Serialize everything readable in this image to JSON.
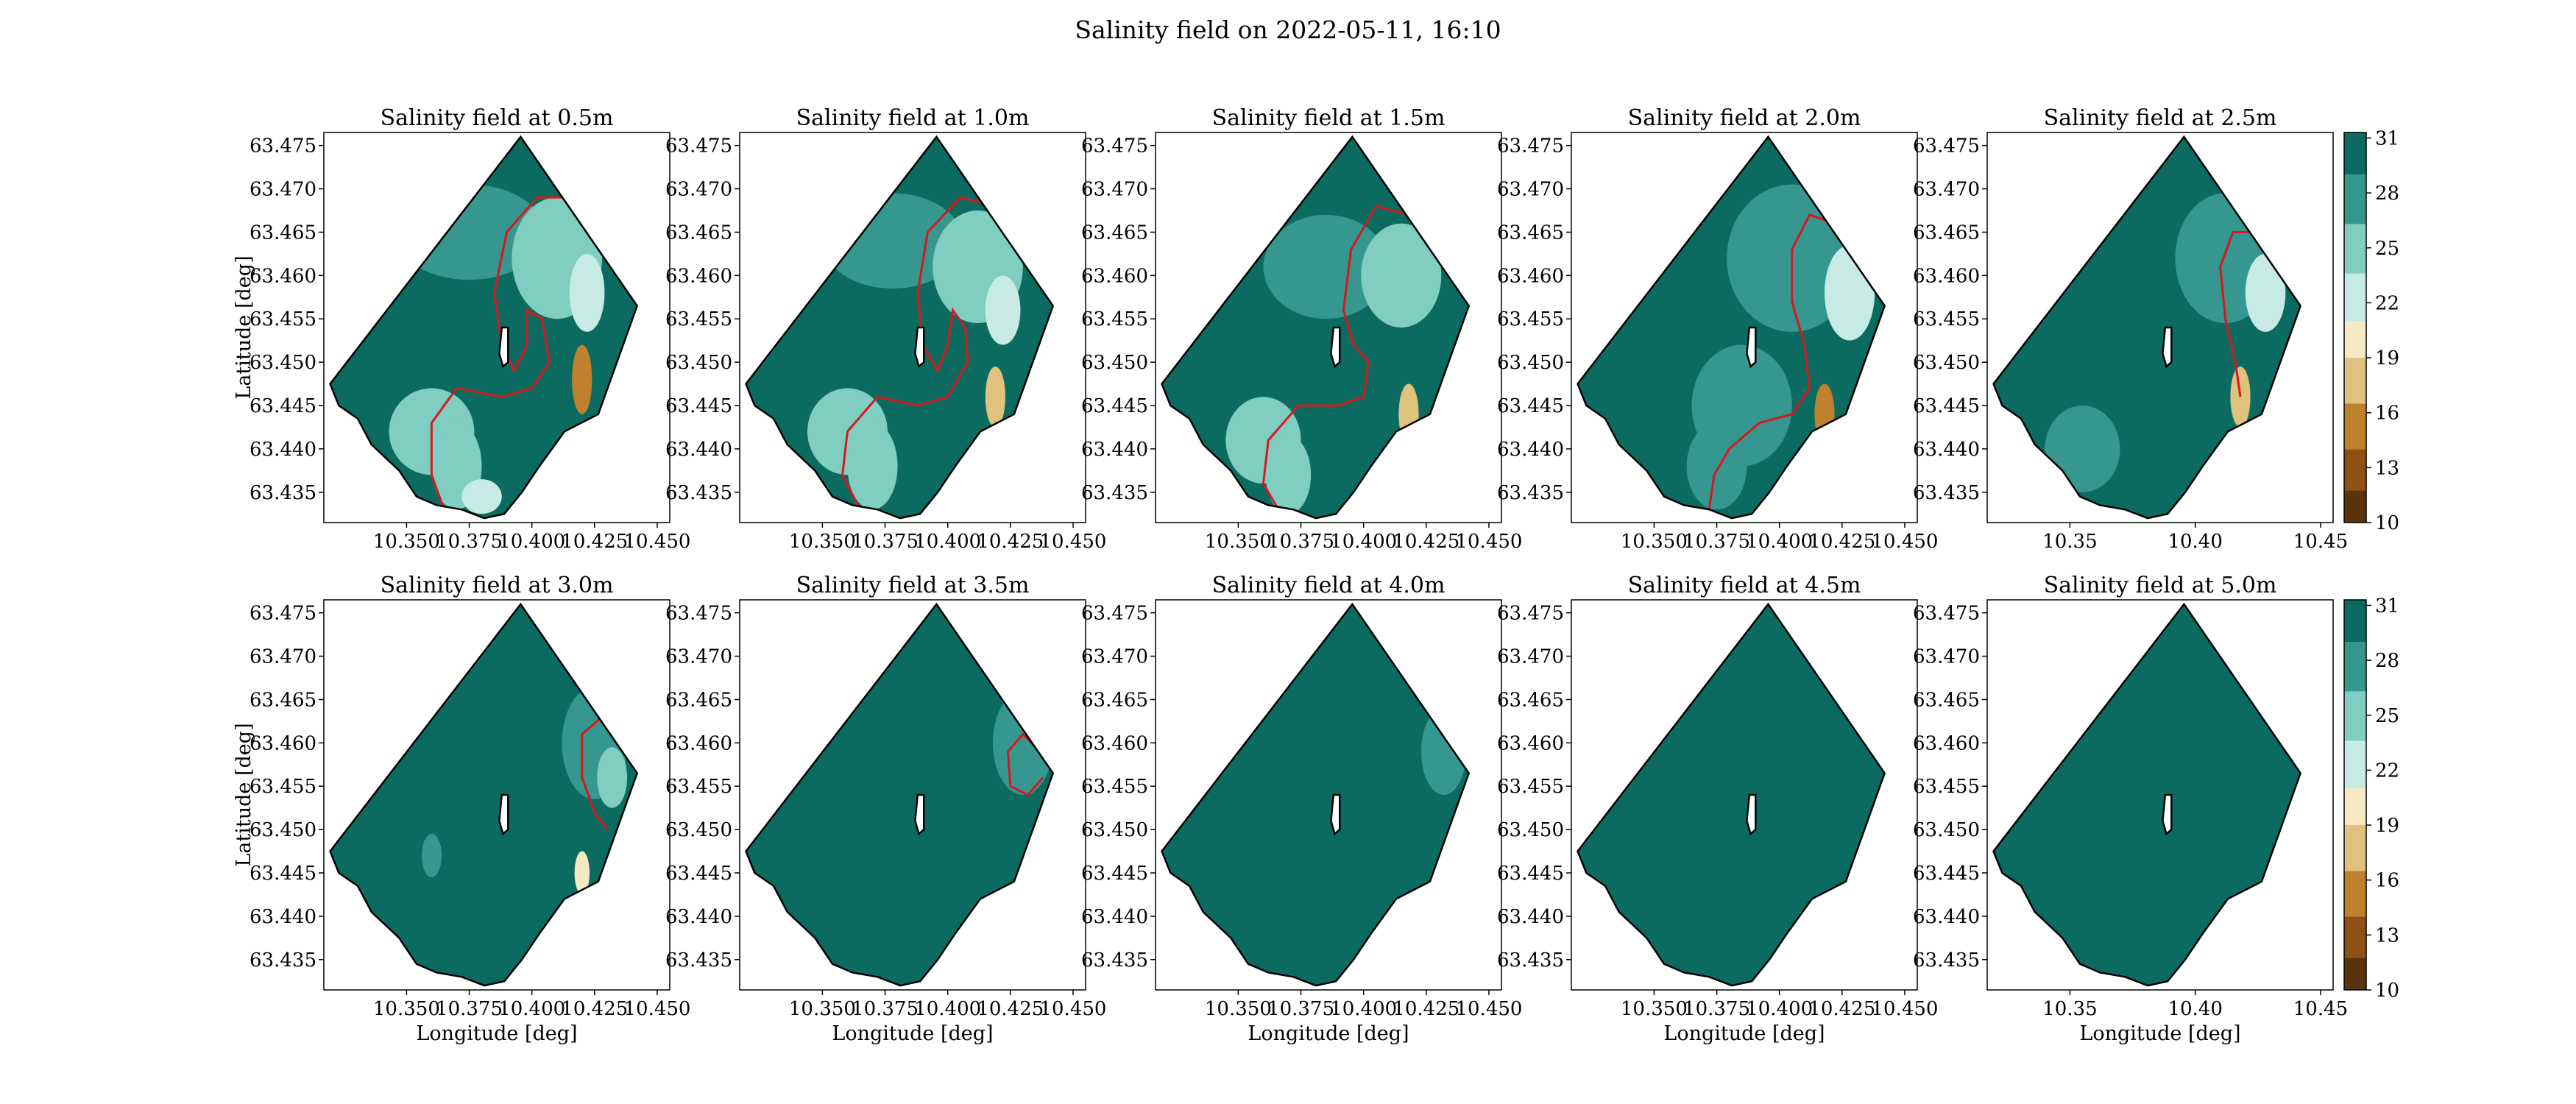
{
  "figure": {
    "suptitle": "Salinity field on 2022-05-11, 16:10"
  },
  "colors": {
    "salinity_palette": [
      "#5a320b",
      "#8c5113",
      "#bf812d",
      "#dfc27d",
      "#f6e8c3",
      "#c7eae5",
      "#80cdc1",
      "#35978f",
      "#0b6b60",
      "#013d34"
    ],
    "coastline": "#000000",
    "front_contour": "#d7191c"
  },
  "colorbar": {
    "ticks": [
      "10",
      "13",
      "16",
      "19",
      "22",
      "25",
      "28",
      "31"
    ],
    "tick_values": [
      10,
      13,
      16,
      19,
      22,
      25,
      28,
      31
    ],
    "levels": [
      10,
      11.75,
      14,
      16.5,
      19,
      21,
      23.6,
      26.3,
      29,
      31.3
    ],
    "label": ""
  },
  "axes": {
    "xlabel": "Longitude [deg]",
    "ylabel": "Latitude [deg]",
    "y_ticks": [
      "63.475",
      "63.470",
      "63.465",
      "63.460",
      "63.455",
      "63.450",
      "63.445",
      "63.440",
      "63.435"
    ],
    "x_ticks_default": [
      "10.350",
      "10.375",
      "10.400",
      "10.425",
      "10.450"
    ],
    "x_ticks_last_col": [
      "10.35",
      "10.40",
      "10.45"
    ]
  },
  "chart_data": {
    "type": "heatmap",
    "xlim": [
      10.317,
      10.455
    ],
    "ylim": [
      63.4315,
      63.4765
    ],
    "domain_outline": [
      [
        10.3195,
        63.4475
      ],
      [
        10.3955,
        63.476
      ],
      [
        10.442,
        63.4565
      ],
      [
        10.4265,
        63.444
      ],
      [
        10.413,
        63.442
      ],
      [
        10.403,
        63.438
      ],
      [
        10.396,
        63.435
      ],
      [
        10.389,
        63.4325
      ],
      [
        10.381,
        63.432
      ],
      [
        10.372,
        63.433
      ],
      [
        10.362,
        63.4335
      ],
      [
        10.354,
        63.4345
      ],
      [
        10.347,
        63.4375
      ],
      [
        10.336,
        63.4405
      ],
      [
        10.3305,
        63.4435
      ],
      [
        10.323,
        63.445
      ]
    ],
    "island_outline": [
      [
        10.388,
        63.454
      ],
      [
        10.3905,
        63.454
      ],
      [
        10.3905,
        63.45
      ],
      [
        10.3885,
        63.4495
      ],
      [
        10.387,
        63.451
      ]
    ],
    "panels": [
      {
        "title": "Salinity field at 0.5m",
        "depth_m": 0.5,
        "background": 29.5,
        "blobs": [
          [
            10.375,
            63.465,
            0.03,
            0.0055,
            27
          ],
          [
            10.41,
            63.462,
            0.018,
            0.007,
            23.8
          ],
          [
            10.422,
            63.458,
            0.007,
            0.0045,
            21.5
          ],
          [
            10.36,
            63.442,
            0.017,
            0.005,
            26
          ],
          [
            10.37,
            63.438,
            0.01,
            0.005,
            24
          ],
          [
            10.42,
            63.448,
            0.004,
            0.004,
            16
          ],
          [
            10.38,
            63.4345,
            0.008,
            0.002,
            21
          ]
        ],
        "front": [
          [
            10.418,
            63.469
          ],
          [
            10.402,
            63.469
          ],
          [
            10.39,
            63.465
          ],
          [
            10.385,
            63.458
          ],
          [
            10.388,
            63.452
          ],
          [
            10.393,
            63.449
          ],
          [
            10.398,
            63.452
          ],
          [
            10.398,
            63.456
          ],
          [
            10.404,
            63.455
          ],
          [
            10.407,
            63.45
          ],
          [
            10.4,
            63.447
          ],
          [
            10.388,
            63.446
          ],
          [
            10.37,
            63.447
          ],
          [
            10.36,
            63.443
          ],
          [
            10.36,
            63.437
          ],
          [
            10.365,
            63.433
          ]
        ]
      },
      {
        "title": "Salinity field at 1.0m",
        "depth_m": 1.0,
        "background": 29.5,
        "blobs": [
          [
            10.378,
            63.464,
            0.028,
            0.0055,
            27
          ],
          [
            10.412,
            63.461,
            0.018,
            0.0065,
            23.8
          ],
          [
            10.422,
            63.456,
            0.007,
            0.004,
            21.5
          ],
          [
            10.36,
            63.442,
            0.016,
            0.005,
            26
          ],
          [
            10.37,
            63.438,
            0.01,
            0.005,
            24
          ],
          [
            10.419,
            63.446,
            0.004,
            0.0035,
            17
          ]
        ],
        "front": [
          [
            10.42,
            63.468
          ],
          [
            10.405,
            63.469
          ],
          [
            10.392,
            63.465
          ],
          [
            10.388,
            63.458
          ],
          [
            10.39,
            63.452
          ],
          [
            10.396,
            63.449
          ],
          [
            10.4,
            63.452
          ],
          [
            10.402,
            63.456
          ],
          [
            10.407,
            63.454
          ],
          [
            10.408,
            63.45
          ],
          [
            10.4,
            63.446
          ],
          [
            10.388,
            63.445
          ],
          [
            10.372,
            63.446
          ],
          [
            10.36,
            63.442
          ],
          [
            10.358,
            63.437
          ],
          [
            10.365,
            63.433
          ]
        ]
      },
      {
        "title": "Salinity field at 1.5m",
        "depth_m": 1.5,
        "background": 29.5,
        "blobs": [
          [
            10.385,
            63.461,
            0.025,
            0.006,
            27
          ],
          [
            10.415,
            63.46,
            0.016,
            0.006,
            24
          ],
          [
            10.36,
            63.441,
            0.015,
            0.005,
            26
          ],
          [
            10.37,
            63.437,
            0.009,
            0.0045,
            24
          ],
          [
            10.418,
            63.444,
            0.004,
            0.0035,
            17
          ]
        ],
        "front": [
          [
            10.418,
            63.467
          ],
          [
            10.405,
            63.468
          ],
          [
            10.395,
            63.463
          ],
          [
            10.392,
            63.456
          ],
          [
            10.396,
            63.452
          ],
          [
            10.402,
            63.45
          ],
          [
            10.4,
            63.446
          ],
          [
            10.39,
            63.445
          ],
          [
            10.374,
            63.445
          ],
          [
            10.362,
            63.441
          ],
          [
            10.36,
            63.436
          ],
          [
            10.366,
            63.433
          ]
        ]
      },
      {
        "title": "Salinity field at 2.0m",
        "depth_m": 2.0,
        "background": 29.5,
        "blobs": [
          [
            10.405,
            63.462,
            0.026,
            0.0085,
            27
          ],
          [
            10.428,
            63.458,
            0.01,
            0.0055,
            23.5
          ],
          [
            10.385,
            63.445,
            0.02,
            0.007,
            27.5
          ],
          [
            10.375,
            63.438,
            0.012,
            0.005,
            26.5
          ],
          [
            10.418,
            63.444,
            0.004,
            0.0035,
            15
          ]
        ],
        "front": [
          [
            10.422,
            63.466
          ],
          [
            10.412,
            63.467
          ],
          [
            10.405,
            63.463
          ],
          [
            10.405,
            63.457
          ],
          [
            10.41,
            63.452
          ],
          [
            10.412,
            63.447
          ],
          [
            10.405,
            63.444
          ],
          [
            10.392,
            63.443
          ],
          [
            10.38,
            63.44
          ],
          [
            10.374,
            63.437
          ],
          [
            10.372,
            63.433
          ]
        ]
      },
      {
        "title": "Salinity field at 2.5m",
        "depth_m": 2.5,
        "background": 29.5,
        "blobs": [
          [
            10.412,
            63.462,
            0.02,
            0.0075,
            27
          ],
          [
            10.428,
            63.458,
            0.008,
            0.0045,
            23.5
          ],
          [
            10.355,
            63.44,
            0.015,
            0.005,
            27.5
          ],
          [
            10.418,
            63.446,
            0.004,
            0.0035,
            17
          ]
        ],
        "front": [
          [
            10.423,
            63.465
          ],
          [
            10.415,
            63.465
          ],
          [
            10.41,
            63.461
          ],
          [
            10.412,
            63.455
          ],
          [
            10.416,
            63.45
          ],
          [
            10.418,
            63.446
          ]
        ]
      },
      {
        "title": "Salinity field at 3.0m",
        "depth_m": 3.0,
        "background": 29.8,
        "blobs": [
          [
            10.425,
            63.46,
            0.013,
            0.0065,
            27
          ],
          [
            10.432,
            63.456,
            0.006,
            0.0035,
            25
          ],
          [
            10.36,
            63.447,
            0.004,
            0.0025,
            27.5
          ],
          [
            10.42,
            63.445,
            0.003,
            0.0025,
            19
          ]
        ],
        "front": [
          [
            10.44,
            63.463
          ],
          [
            10.428,
            63.463
          ],
          [
            10.42,
            63.461
          ],
          [
            10.42,
            63.456
          ],
          [
            10.425,
            63.452
          ],
          [
            10.43,
            63.45
          ]
        ]
      },
      {
        "title": "Salinity field at 3.5m",
        "depth_m": 3.5,
        "background": 30,
        "blobs": [
          [
            10.43,
            63.46,
            0.012,
            0.006,
            27.5
          ],
          [
            10.432,
            63.457,
            0.005,
            0.003,
            26.5
          ]
        ],
        "front": [
          [
            10.44,
            63.458
          ],
          [
            10.43,
            63.461
          ],
          [
            10.424,
            63.459
          ],
          [
            10.425,
            63.455
          ],
          [
            10.432,
            63.454
          ],
          [
            10.438,
            63.456
          ]
        ]
      },
      {
        "title": "Salinity field at 4.0m",
        "depth_m": 4.0,
        "background": 30,
        "blobs": [
          [
            10.432,
            63.459,
            0.009,
            0.005,
            27.5
          ]
        ],
        "front": []
      },
      {
        "title": "Salinity field at 4.5m",
        "depth_m": 4.5,
        "background": 30,
        "blobs": [],
        "front": []
      },
      {
        "title": "Salinity field at 5.0m",
        "depth_m": 5.0,
        "background": 30.2,
        "blobs": [],
        "front": []
      }
    ]
  }
}
